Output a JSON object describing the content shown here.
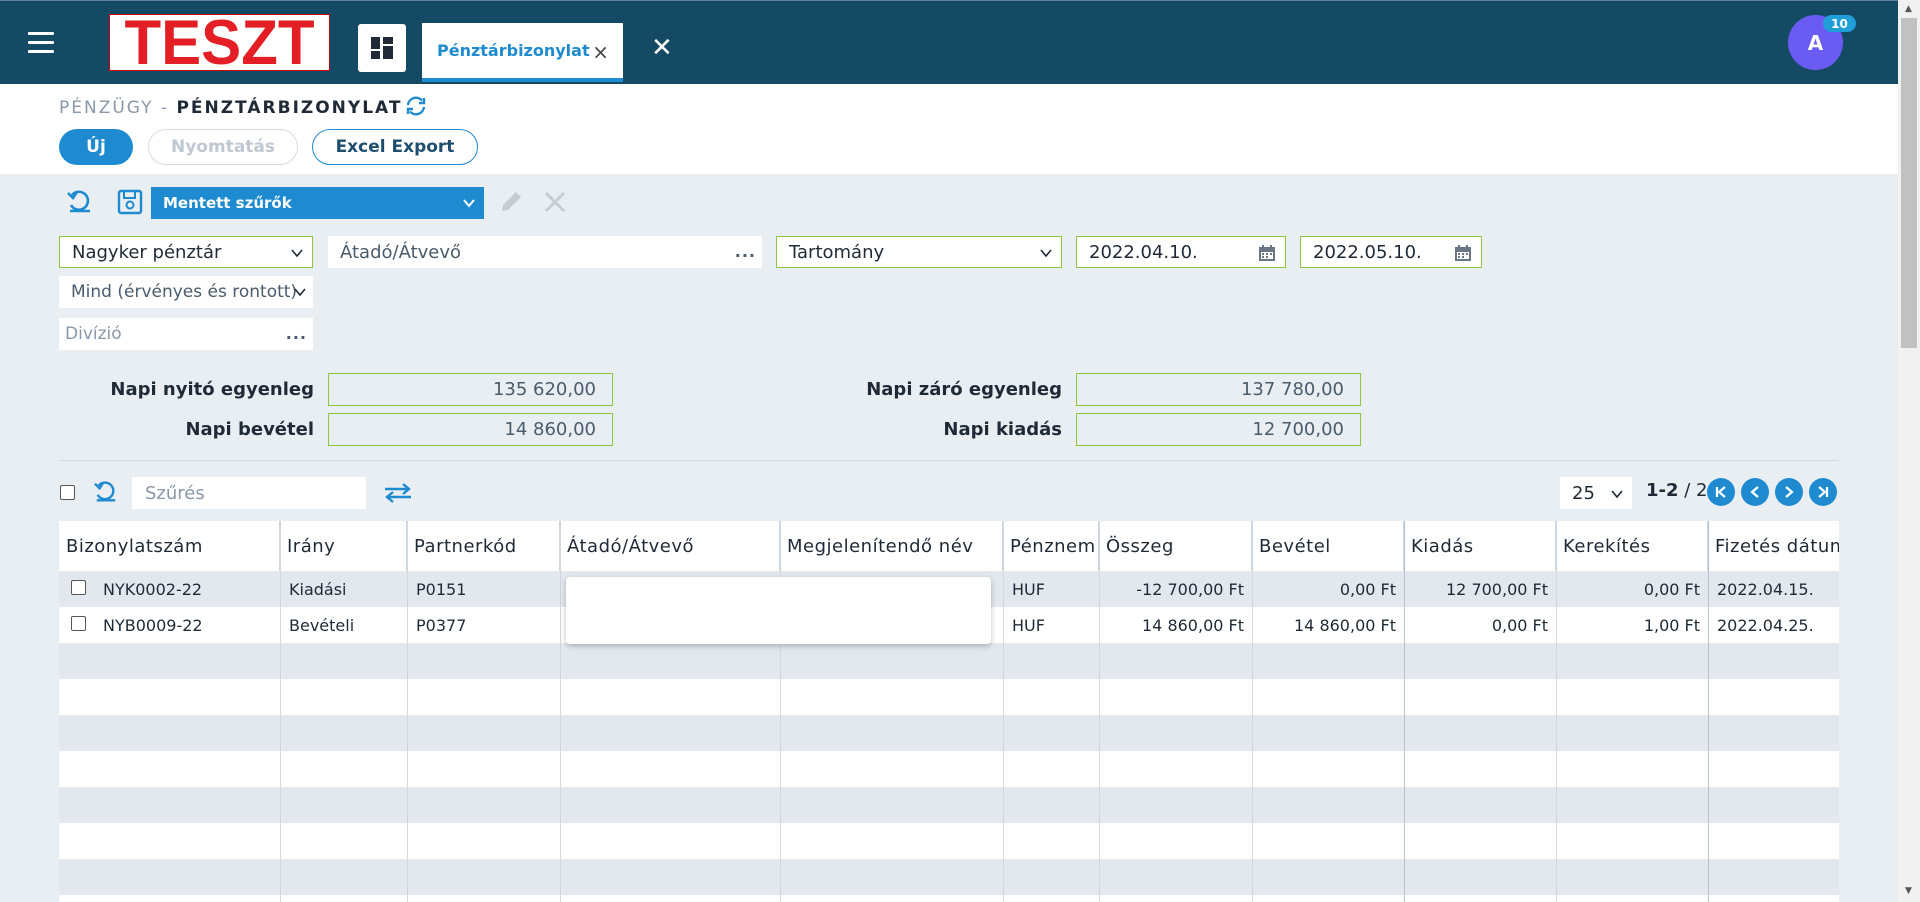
{
  "app": {
    "logo_text": "TESZT",
    "active_tab": "Pénztárbizonylat",
    "tab_close": "×",
    "close_all": "✕",
    "avatar_letter": "A",
    "notification_count": "10"
  },
  "page": {
    "breadcrumb_module": "PÉNZÜGY -",
    "breadcrumb_page": "PÉNZTÁRBIZONYLAT"
  },
  "toolbar": {
    "new_label": "Új",
    "print_label": "Nyomtatás",
    "excel_label": "Excel Export"
  },
  "filters": {
    "saved_filters": "Mentett szűrők",
    "cashdesk": "Nagyker pénztár",
    "partner_placeholder": "Átadó/Átvevő",
    "range": "Tartomány",
    "date_from": "2022.04.10.",
    "date_to": "2022.05.10.",
    "status": "Mind (érvényes és rontott)",
    "division_placeholder": "Divízió",
    "dots": "..."
  },
  "summary": {
    "opening_label": "Napi nyitó egyenleg",
    "opening_value": "135 620,00",
    "income_label": "Napi bevétel",
    "income_value": "14 860,00",
    "closing_label": "Napi záró egyenleg",
    "closing_value": "137 780,00",
    "expense_label": "Napi kiadás",
    "expense_value": "12 700,00"
  },
  "grid": {
    "filter_placeholder": "Szűrés",
    "page_size": "25",
    "page_range": "1-2",
    "page_total": "/ 2",
    "columns": [
      "Bizonylatszám",
      "Irány",
      "Partnerkód",
      "Átadó/Átvevő",
      "Megjelenítendő név",
      "Pénznem",
      "Összeg",
      "Bevétel",
      "Kiadás",
      "Kerekítés",
      "Fizetés dátuma"
    ],
    "rows": [
      {
        "number": "NYK0002-22",
        "direction": "Kiadási",
        "partner": "P0151",
        "currency": "HUF",
        "amount": "-12 700,00 Ft",
        "income": "0,00 Ft",
        "expense": "12 700,00 Ft",
        "rounding": "0,00 Ft",
        "date": "2022.04.15."
      },
      {
        "number": "NYB0009-22",
        "direction": "Bevételi",
        "partner": "P0377",
        "currency": "HUF",
        "amount": "14 860,00 Ft",
        "income": "14 860,00 Ft",
        "expense": "0,00 Ft",
        "rounding": "1,00 Ft",
        "date": "2022.04.25."
      }
    ]
  },
  "colors": {
    "topbar": "#144a63",
    "accent": "#1e8bd0",
    "field_border": "#8cc63f",
    "logo_red": "#e31e24",
    "avatar": "#6a5cf3"
  },
  "icons": {
    "menu": "hamburger-icon",
    "dashboard": "dashboard-icon",
    "refresh": "refresh-icon",
    "undo": "undo-icon",
    "save": "save-icon",
    "edit": "pencil-icon",
    "delete": "close-icon",
    "calendar": "calendar-icon",
    "swap": "swap-icon"
  }
}
